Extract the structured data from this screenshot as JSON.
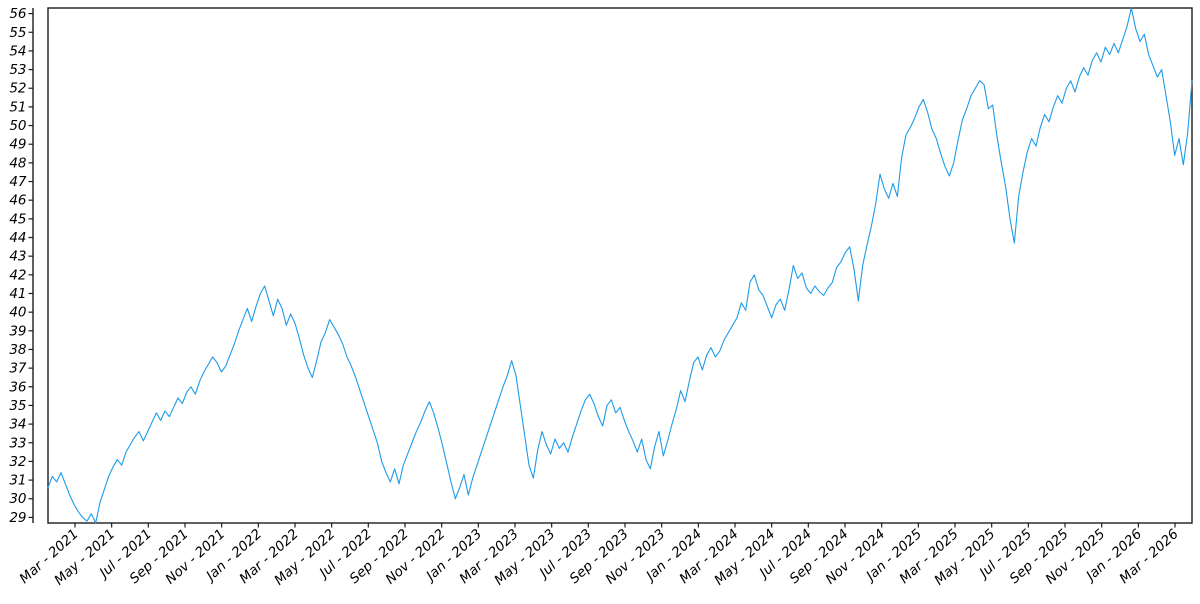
{
  "chart_data": {
    "type": "line",
    "title": "",
    "xlabel": "",
    "ylabel": "",
    "grid": false,
    "legend": "none",
    "background_color": "#ffffff",
    "line_color": "#1e9be8",
    "axis_color": "#1c1c1c",
    "tick_label_color": "#000000",
    "tick_font_size": 13.5,
    "x_unit": "weeks_since_start",
    "xlim": [
      0,
      264
    ],
    "ylim": [
      28.7,
      56.3
    ],
    "y_ticks": [
      29,
      30,
      31,
      32,
      33,
      34,
      35,
      36,
      37,
      38,
      39,
      40,
      41,
      42,
      43,
      44,
      45,
      46,
      47,
      48,
      49,
      50,
      51,
      52,
      53,
      54,
      55,
      56
    ],
    "x_ticks": [
      {
        "pos": 6.23,
        "label": "Mar - 2021"
      },
      {
        "pos": 14.69,
        "label": "May - 2021"
      },
      {
        "pos": 23.15,
        "label": "Jul - 2021"
      },
      {
        "pos": 31.62,
        "label": "Sep - 2021"
      },
      {
        "pos": 40.08,
        "label": "Nov - 2021"
      },
      {
        "pos": 48.54,
        "label": "Jan - 2022"
      },
      {
        "pos": 57.0,
        "label": "Mar - 2022"
      },
      {
        "pos": 65.46,
        "label": "May - 2022"
      },
      {
        "pos": 73.92,
        "label": "Jul - 2022"
      },
      {
        "pos": 82.39,
        "label": "Sep - 2022"
      },
      {
        "pos": 90.85,
        "label": "Nov - 2022"
      },
      {
        "pos": 99.31,
        "label": "Jan - 2023"
      },
      {
        "pos": 107.77,
        "label": "Mar - 2023"
      },
      {
        "pos": 116.23,
        "label": "May - 2023"
      },
      {
        "pos": 124.69,
        "label": "Jul - 2023"
      },
      {
        "pos": 133.16,
        "label": "Sep - 2023"
      },
      {
        "pos": 141.62,
        "label": "Nov - 2023"
      },
      {
        "pos": 150.08,
        "label": "Jan - 2024"
      },
      {
        "pos": 158.54,
        "label": "Mar - 2024"
      },
      {
        "pos": 167.0,
        "label": "May - 2024"
      },
      {
        "pos": 175.46,
        "label": "Jul - 2024"
      },
      {
        "pos": 183.93,
        "label": "Sep - 2024"
      },
      {
        "pos": 192.39,
        "label": "Nov - 2024"
      },
      {
        "pos": 200.85,
        "label": "Jan - 2025"
      },
      {
        "pos": 209.31,
        "label": "Mar - 2025"
      },
      {
        "pos": 217.77,
        "label": "May - 2025"
      },
      {
        "pos": 226.23,
        "label": "Jul - 2025"
      },
      {
        "pos": 234.7,
        "label": "Sep - 2025"
      },
      {
        "pos": 243.16,
        "label": "Nov - 2025"
      },
      {
        "pos": 251.62,
        "label": "Jan - 2026"
      },
      {
        "pos": 260.08,
        "label": "Mar - 2026"
      }
    ],
    "series": [
      {
        "name": "value",
        "values": [
          30.6,
          31.2,
          30.9,
          31.4,
          30.8,
          30.2,
          29.7,
          29.3,
          29.0,
          28.8,
          29.2,
          28.7,
          29.8,
          30.5,
          31.2,
          31.7,
          32.1,
          31.8,
          32.5,
          32.9,
          33.3,
          33.6,
          33.1,
          33.6,
          34.1,
          34.6,
          34.2,
          34.7,
          34.4,
          34.9,
          35.4,
          35.1,
          35.7,
          36.0,
          35.6,
          36.3,
          36.8,
          37.2,
          37.6,
          37.3,
          36.8,
          37.1,
          37.7,
          38.3,
          39.0,
          39.6,
          40.2,
          39.5,
          40.3,
          41.0,
          41.4,
          40.6,
          39.8,
          40.7,
          40.2,
          39.3,
          39.9,
          39.4,
          38.6,
          37.7,
          37.0,
          36.5,
          37.4,
          38.4,
          38.9,
          39.6,
          39.2,
          38.8,
          38.3,
          37.6,
          37.1,
          36.5,
          35.8,
          35.1,
          34.4,
          33.7,
          33.0,
          32.0,
          31.4,
          30.9,
          31.6,
          30.8,
          31.8,
          32.4,
          33.0,
          33.6,
          34.1,
          34.7,
          35.2,
          34.6,
          33.8,
          32.9,
          31.9,
          30.9,
          30.0,
          30.6,
          31.3,
          30.2,
          31.1,
          31.8,
          32.5,
          33.2,
          33.9,
          34.6,
          35.3,
          36.0,
          36.6,
          37.4,
          36.6,
          35.0,
          33.4,
          31.8,
          31.1,
          32.6,
          33.6,
          32.9,
          32.4,
          33.2,
          32.7,
          33.0,
          32.5,
          33.3,
          34.0,
          34.7,
          35.3,
          35.6,
          35.1,
          34.4,
          33.9,
          35.0,
          35.3,
          34.6,
          34.9,
          34.2,
          33.6,
          33.1,
          32.5,
          33.2,
          32.1,
          31.6,
          32.8,
          33.6,
          32.3,
          33.1,
          34.0,
          34.8,
          35.8,
          35.2,
          36.3,
          37.3,
          37.6,
          36.9,
          37.7,
          38.1,
          37.6,
          37.9,
          38.5,
          38.9,
          39.3,
          39.7,
          40.5,
          40.1,
          41.6,
          42.0,
          41.2,
          40.9,
          40.3,
          39.7,
          40.4,
          40.7,
          40.1,
          41.2,
          42.5,
          41.8,
          42.1,
          41.3,
          41.0,
          41.4,
          41.1,
          40.9,
          41.3,
          41.6,
          42.4,
          42.7,
          43.2,
          43.5,
          42.3,
          40.6,
          42.5,
          43.6,
          44.6,
          45.8,
          47.4,
          46.6,
          46.1,
          46.9,
          46.2,
          48.3,
          49.5,
          49.9,
          50.4,
          51.0,
          51.4,
          50.7,
          49.8,
          49.3,
          48.5,
          47.8,
          47.3,
          48.0,
          49.2,
          50.3,
          50.9,
          51.6,
          52.0,
          52.4,
          52.2,
          50.9,
          51.1,
          49.4,
          48.0,
          46.7,
          45.0,
          43.7,
          46.2,
          47.5,
          48.6,
          49.3,
          48.9,
          49.9,
          50.6,
          50.2,
          51.0,
          51.6,
          51.2,
          52.0,
          52.4,
          51.8,
          52.6,
          53.1,
          52.7,
          53.5,
          53.9,
          53.4,
          54.2,
          53.8,
          54.4,
          53.9,
          54.6,
          55.3,
          56.3,
          55.2,
          54.5,
          54.9,
          53.8,
          53.2,
          52.6,
          53.0,
          51.6,
          50.2,
          48.4,
          49.3,
          47.9,
          49.6,
          52.4
        ]
      }
    ]
  }
}
